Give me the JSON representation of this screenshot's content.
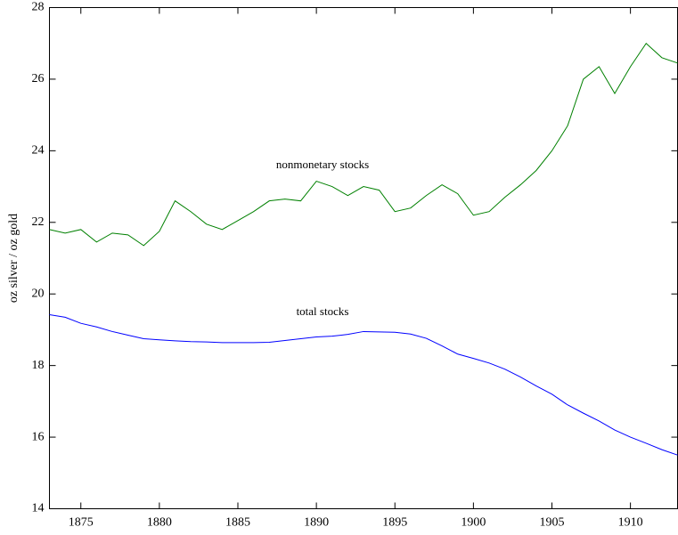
{
  "chart_data": {
    "type": "line",
    "y_label": "oz silver / oz gold",
    "annotations": [
      "nonmonetary stocks",
      "total stocks"
    ],
    "x": [
      1873,
      1874,
      1875,
      1876,
      1877,
      1878,
      1879,
      1880,
      1881,
      1882,
      1883,
      1884,
      1885,
      1886,
      1887,
      1888,
      1889,
      1890,
      1891,
      1892,
      1893,
      1894,
      1895,
      1896,
      1897,
      1898,
      1899,
      1900,
      1901,
      1902,
      1903,
      1904,
      1905,
      1906,
      1907,
      1908,
      1909,
      1910,
      1911,
      1912,
      1913
    ],
    "series": [
      {
        "name": "nonmonetary stocks",
        "color": "#008000",
        "values": [
          21.8,
          21.7,
          21.8,
          21.45,
          21.7,
          21.65,
          21.35,
          21.75,
          22.6,
          22.3,
          21.95,
          21.8,
          22.05,
          22.3,
          22.6,
          22.65,
          22.6,
          23.15,
          23.0,
          22.75,
          23.0,
          22.9,
          22.3,
          22.4,
          22.75,
          23.05,
          22.8,
          22.2,
          22.3,
          22.7,
          23.05,
          23.45,
          24.0,
          24.7,
          26.0,
          26.35,
          25.6,
          26.35,
          27.0,
          26.6,
          26.45
        ]
      },
      {
        "name": "total stocks",
        "color": "#0000ff",
        "values": [
          19.42,
          19.35,
          19.18,
          19.08,
          18.95,
          18.85,
          18.75,
          18.72,
          18.69,
          18.67,
          18.66,
          18.64,
          18.64,
          18.64,
          18.65,
          18.7,
          18.75,
          18.8,
          18.82,
          18.87,
          18.95,
          18.94,
          18.93,
          18.88,
          18.76,
          18.55,
          18.32,
          18.2,
          18.07,
          17.9,
          17.68,
          17.43,
          17.2,
          16.9,
          16.67,
          16.45,
          16.2,
          16.0,
          15.83,
          15.65,
          15.5
        ]
      }
    ],
    "xlim": [
      1873,
      1913
    ],
    "xticks": [
      1875,
      1880,
      1885,
      1890,
      1895,
      1900,
      1905,
      1910
    ],
    "ylim": [
      14,
      28
    ],
    "yticks": [
      14,
      16,
      18,
      20,
      22,
      24,
      26,
      28
    ],
    "grid": false
  }
}
